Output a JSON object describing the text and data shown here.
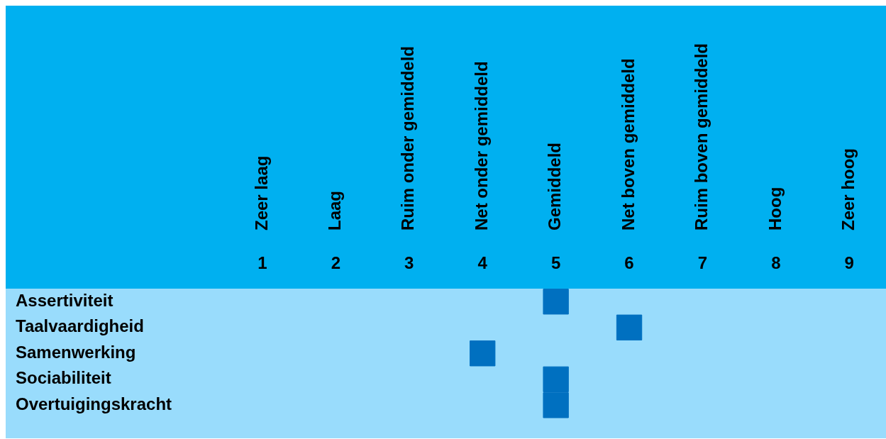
{
  "chart_data": {
    "type": "scatter",
    "orientation": "horizontal",
    "categories": [
      "Assertiviteit",
      "Taalvaardigheid",
      "Samenwerking",
      "Sociabiliteit",
      "Overtuigingskracht"
    ],
    "values": [
      5,
      6,
      4,
      5,
      5
    ],
    "color": "#0070c0",
    "marker": "square",
    "legend": false,
    "grid": false,
    "xlim": [
      -2.5,
      9.5
    ],
    "xticks": [
      1,
      2,
      3,
      4,
      5,
      6,
      7,
      8,
      9
    ],
    "annotations": [
      "Zeer laag",
      "Laag",
      "Ruim onder gemiddeld",
      "Net onder gemiddeld",
      "Gemiddeld",
      "Net boven gemiddeld",
      "Ruim boven gemiddeld",
      "Hoog",
      "Zeer hoog"
    ]
  }
}
